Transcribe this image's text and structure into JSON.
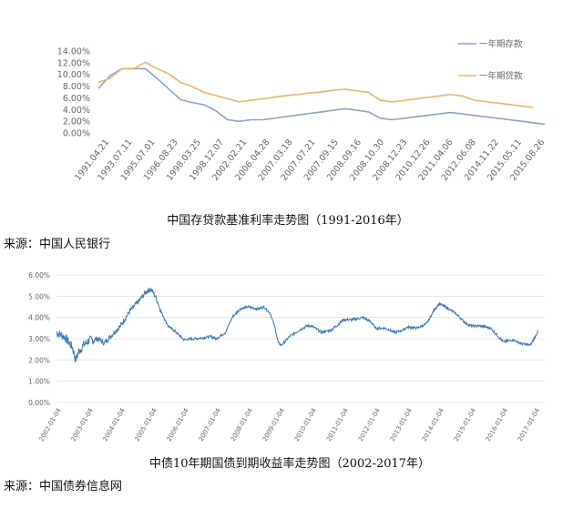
{
  "chart_data": [
    {
      "type": "line",
      "title": "中国存贷款基准利率走势图（1991-2016年）",
      "source": "来源：中国人民银行",
      "x_labels": [
        "1991.04.21",
        "1993.07.11",
        "1995.07.01",
        "1996.08.23",
        "1998.03.25",
        "1998.12.07",
        "2002.02.21",
        "2006.04.28",
        "2007.03.18",
        "2007.07.21",
        "2007.09.15",
        "2008.09.16",
        "2008.10.30",
        "2008.12.23",
        "2010.12.26",
        "2011.04.06",
        "2012.06.08",
        "2014.11.22",
        "2015.05.11",
        "2015.08.26"
      ],
      "y_ticks": [
        "0.00%",
        "2.00%",
        "4.00%",
        "6.00%",
        "8.00%",
        "10.00%",
        "12.00%",
        "14.00%"
      ],
      "ylim": [
        0,
        14
      ],
      "grid": false,
      "legend_position": "top-right",
      "series": [
        {
          "name": "一年期存款",
          "color": "#8aa2c8",
          "points": [
            [
              0,
              7.6
            ],
            [
              1,
              9.8
            ],
            [
              2,
              10.98
            ],
            [
              3,
              10.98
            ],
            [
              4,
              10.98
            ],
            [
              5,
              9.3
            ],
            [
              6,
              7.5
            ],
            [
              7,
              5.67
            ],
            [
              8,
              5.2
            ],
            [
              9,
              4.8
            ],
            [
              10,
              3.78
            ],
            [
              11,
              2.25
            ],
            [
              12,
              1.98
            ],
            [
              13,
              2.25
            ],
            [
              14,
              2.25
            ],
            [
              15,
              2.52
            ],
            [
              16,
              2.79
            ],
            [
              17,
              3.06
            ],
            [
              18,
              3.33
            ],
            [
              19,
              3.6
            ],
            [
              20,
              3.87
            ],
            [
              21,
              4.14
            ],
            [
              22,
              3.87
            ],
            [
              23,
              3.6
            ],
            [
              24,
              2.52
            ],
            [
              25,
              2.25
            ],
            [
              26,
              2.5
            ],
            [
              27,
              2.75
            ],
            [
              28,
              3.0
            ],
            [
              29,
              3.25
            ],
            [
              30,
              3.5
            ],
            [
              31,
              3.25
            ],
            [
              32,
              3.0
            ],
            [
              33,
              2.75
            ],
            [
              34,
              2.5
            ],
            [
              35,
              2.25
            ],
            [
              36,
              2.0
            ],
            [
              37,
              1.75
            ],
            [
              38,
              1.5
            ]
          ]
        },
        {
          "name": "一年期贷款",
          "color": "#f0b26a",
          "points": [
            [
              0,
              8.64
            ],
            [
              1,
              9.36
            ],
            [
              2,
              10.98
            ],
            [
              3,
              10.98
            ],
            [
              4,
              12.06
            ],
            [
              5,
              11.0
            ],
            [
              6,
              10.08
            ],
            [
              7,
              8.64
            ],
            [
              8,
              7.92
            ],
            [
              9,
              6.93
            ],
            [
              10,
              6.39
            ],
            [
              11,
              5.85
            ],
            [
              12,
              5.31
            ],
            [
              13,
              5.58
            ],
            [
              14,
              5.85
            ],
            [
              15,
              6.12
            ],
            [
              16,
              6.39
            ],
            [
              17,
              6.57
            ],
            [
              18,
              6.84
            ],
            [
              19,
              7.02
            ],
            [
              20,
              7.29
            ],
            [
              21,
              7.47
            ],
            [
              22,
              7.2
            ],
            [
              23,
              6.93
            ],
            [
              24,
              5.58
            ],
            [
              25,
              5.31
            ],
            [
              26,
              5.56
            ],
            [
              27,
              5.81
            ],
            [
              28,
              6.06
            ],
            [
              29,
              6.31
            ],
            [
              30,
              6.56
            ],
            [
              31,
              6.31
            ],
            [
              32,
              5.6
            ],
            [
              33,
              5.35
            ],
            [
              34,
              5.1
            ],
            [
              35,
              4.85
            ],
            [
              36,
              4.6
            ],
            [
              37,
              4.35
            ]
          ]
        }
      ]
    },
    {
      "type": "line",
      "title": "中债10年期国债到期收益率走势图（2002-2017年）",
      "source": "来源：中国债券信息网",
      "x_labels": [
        "2002-01-04",
        "2003-01-04",
        "2004-01-04",
        "2005-01-04",
        "2006-01-04",
        "2007-01-04",
        "2008-01-04",
        "2009-01-04",
        "2010-01-04",
        "2011-01-04",
        "2012-01-04",
        "2013-01-04",
        "2014-01-04",
        "2015-01-04",
        "2016-01-04",
        "2017-01-04"
      ],
      "y_ticks": [
        "0.00%",
        "1.00%",
        "2.00%",
        "3.00%",
        "4.00%",
        "5.00%",
        "6.00%"
      ],
      "ylim": [
        0,
        6
      ],
      "grid": true,
      "series": [
        {
          "name": "",
          "color": "#3a78b8",
          "points": [
            [
              2002.0,
              3.3
            ],
            [
              2002.25,
              3.1
            ],
            [
              2002.5,
              2.6
            ],
            [
              2002.6,
              2.0
            ],
            [
              2002.7,
              2.4
            ],
            [
              2002.85,
              2.7
            ],
            [
              2003.0,
              2.9
            ],
            [
              2003.3,
              3.0
            ],
            [
              2003.5,
              2.8
            ],
            [
              2003.75,
              3.2
            ],
            [
              2004.0,
              3.6
            ],
            [
              2004.3,
              4.3
            ],
            [
              2004.6,
              4.8
            ],
            [
              2004.8,
              5.2
            ],
            [
              2004.95,
              5.35
            ],
            [
              2005.1,
              5.0
            ],
            [
              2005.3,
              4.2
            ],
            [
              2005.5,
              3.6
            ],
            [
              2005.75,
              3.3
            ],
            [
              2006.0,
              2.95
            ],
            [
              2006.3,
              3.0
            ],
            [
              2006.6,
              3.05
            ],
            [
              2006.85,
              3.1
            ],
            [
              2007.0,
              3.0
            ],
            [
              2007.3,
              3.3
            ],
            [
              2007.5,
              4.0
            ],
            [
              2007.75,
              4.4
            ],
            [
              2008.0,
              4.5
            ],
            [
              2008.3,
              4.4
            ],
            [
              2008.5,
              4.5
            ],
            [
              2008.7,
              4.2
            ],
            [
              2008.85,
              3.5
            ],
            [
              2008.95,
              2.8
            ],
            [
              2009.05,
              2.7
            ],
            [
              2009.3,
              3.1
            ],
            [
              2009.6,
              3.4
            ],
            [
              2009.85,
              3.6
            ],
            [
              2010.0,
              3.6
            ],
            [
              2010.3,
              3.3
            ],
            [
              2010.6,
              3.4
            ],
            [
              2010.85,
              3.7
            ],
            [
              2011.0,
              3.9
            ],
            [
              2011.3,
              3.9
            ],
            [
              2011.6,
              4.0
            ],
            [
              2011.85,
              3.8
            ],
            [
              2012.0,
              3.5
            ],
            [
              2012.3,
              3.5
            ],
            [
              2012.6,
              3.3
            ],
            [
              2012.85,
              3.4
            ],
            [
              2013.0,
              3.55
            ],
            [
              2013.3,
              3.5
            ],
            [
              2013.6,
              3.7
            ],
            [
              2013.85,
              4.4
            ],
            [
              2014.0,
              4.65
            ],
            [
              2014.3,
              4.4
            ],
            [
              2014.5,
              4.2
            ],
            [
              2014.85,
              3.7
            ],
            [
              2015.0,
              3.6
            ],
            [
              2015.3,
              3.6
            ],
            [
              2015.6,
              3.5
            ],
            [
              2015.85,
              3.1
            ],
            [
              2016.0,
              2.85
            ],
            [
              2016.3,
              2.95
            ],
            [
              2016.6,
              2.75
            ],
            [
              2016.85,
              2.7
            ],
            [
              2017.0,
              3.1
            ],
            [
              2017.1,
              3.4
            ]
          ]
        }
      ]
    }
  ]
}
